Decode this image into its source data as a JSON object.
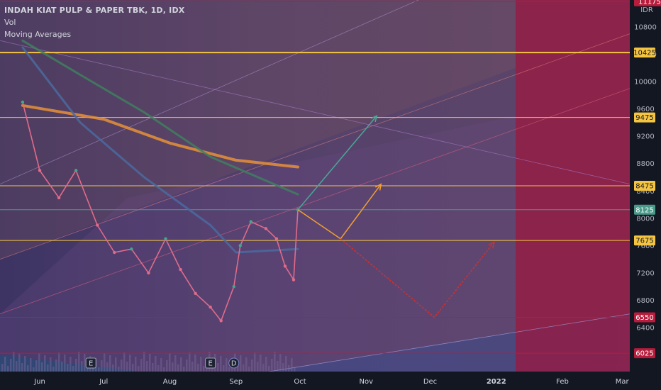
{
  "legend": {
    "symbol": "INDAH KIAT PULP & PAPER TBK, 1D, IDX",
    "vol_label": "Vol",
    "ma_label": "Moving Averages"
  },
  "currency": "IDR",
  "chart_data": {
    "type": "candlestick",
    "title": "INDAH KIAT PULP & PAPER TBK, 1D, IDX",
    "ylabel": "IDR",
    "ylim": [
      6025,
      11175
    ],
    "y_ticks": [
      6400,
      6800,
      7200,
      7600,
      8000,
      8400,
      8800,
      9200,
      9600,
      10000,
      10400,
      10800
    ],
    "x_ticks": [
      "Jun",
      "Jul",
      "Aug",
      "Sep",
      "Oct",
      "Nov",
      "Dec",
      "2022",
      "Feb",
      "Mar"
    ],
    "horizontal_levels": [
      {
        "price": 11175,
        "label": "11175",
        "color": "#b71c3c"
      },
      {
        "price": 10425,
        "label": "10425",
        "color": "#f5c542"
      },
      {
        "price": 9475,
        "label": "9475",
        "color": "#f5c542"
      },
      {
        "price": 8475,
        "label": "8475",
        "color": "#f5c542"
      },
      {
        "price": 8125,
        "label": "8125",
        "color": "#4a9a8a"
      },
      {
        "price": 7675,
        "label": "7675",
        "color": "#f5c542"
      },
      {
        "price": 6550,
        "label": "6550",
        "color": "#b71c3c"
      },
      {
        "price": 6025,
        "label": "6025",
        "color": "#b71c3c"
      }
    ],
    "price_series": [
      {
        "date": "2021-05-24",
        "price": 9700
      },
      {
        "date": "2021-06-01",
        "price": 8700
      },
      {
        "date": "2021-06-10",
        "price": 8300
      },
      {
        "date": "2021-06-18",
        "price": 8700
      },
      {
        "date": "2021-06-28",
        "price": 7900
      },
      {
        "date": "2021-07-06",
        "price": 7500
      },
      {
        "date": "2021-07-14",
        "price": 7550
      },
      {
        "date": "2021-07-22",
        "price": 7200
      },
      {
        "date": "2021-07-30",
        "price": 7700
      },
      {
        "date": "2021-08-06",
        "price": 7250
      },
      {
        "date": "2021-08-13",
        "price": 6900
      },
      {
        "date": "2021-08-20",
        "price": 6700
      },
      {
        "date": "2021-08-25",
        "price": 6500
      },
      {
        "date": "2021-08-31",
        "price": 7000
      },
      {
        "date": "2021-09-03",
        "price": 7600
      },
      {
        "date": "2021-09-08",
        "price": 7950
      },
      {
        "date": "2021-09-15",
        "price": 7850
      },
      {
        "date": "2021-09-20",
        "price": 7700
      },
      {
        "date": "2021-09-24",
        "price": 7300
      },
      {
        "date": "2021-09-28",
        "price": 7100
      },
      {
        "date": "2021-09-30",
        "price": 8125
      }
    ],
    "moving_averages": [
      {
        "color": "#e69138",
        "points": [
          {
            "date": "2021-05-24",
            "price": 9650
          },
          {
            "date": "2021-07-01",
            "price": 9450
          },
          {
            "date": "2021-08-01",
            "price": 9100
          },
          {
            "date": "2021-09-01",
            "price": 8850
          },
          {
            "date": "2021-09-30",
            "price": 8750
          }
        ]
      },
      {
        "color": "#3f7f5f",
        "points": [
          {
            "date": "2021-05-24",
            "price": 10600
          },
          {
            "date": "2021-06-20",
            "price": 10100
          },
          {
            "date": "2021-07-20",
            "price": 9550
          },
          {
            "date": "2021-08-20",
            "price": 8900
          },
          {
            "date": "2021-09-30",
            "price": 8350
          }
        ]
      },
      {
        "color": "#4a6aa0",
        "points": [
          {
            "date": "2021-05-24",
            "price": 10500
          },
          {
            "date": "2021-06-20",
            "price": 9400
          },
          {
            "date": "2021-07-20",
            "price": 8600
          },
          {
            "date": "2021-08-20",
            "price": 7900
          },
          {
            "date": "2021-09-01",
            "price": 7500
          },
          {
            "date": "2021-09-30",
            "price": 7550
          }
        ]
      }
    ],
    "projections": [
      {
        "color": "#4aa896",
        "points": [
          {
            "date": "2021-09-30",
            "price": 8125
          },
          {
            "date": "2021-11-06",
            "price": 9500
          }
        ]
      },
      {
        "color": "#f0a030",
        "points": [
          {
            "date": "2021-09-30",
            "price": 8125
          },
          {
            "date": "2021-10-20",
            "price": 7700
          },
          {
            "date": "2021-11-08",
            "price": 8500
          }
        ]
      },
      {
        "color": "#d03030",
        "points": [
          {
            "date": "2021-10-20",
            "price": 7700
          },
          {
            "date": "2021-12-03",
            "price": 6550
          },
          {
            "date": "2021-12-31",
            "price": 7650
          }
        ]
      }
    ],
    "event_markers": [
      {
        "date": "2021-06-25",
        "label": "E"
      },
      {
        "date": "2021-08-20",
        "label": "E"
      },
      {
        "date": "2021-08-31",
        "label": "D"
      }
    ]
  }
}
